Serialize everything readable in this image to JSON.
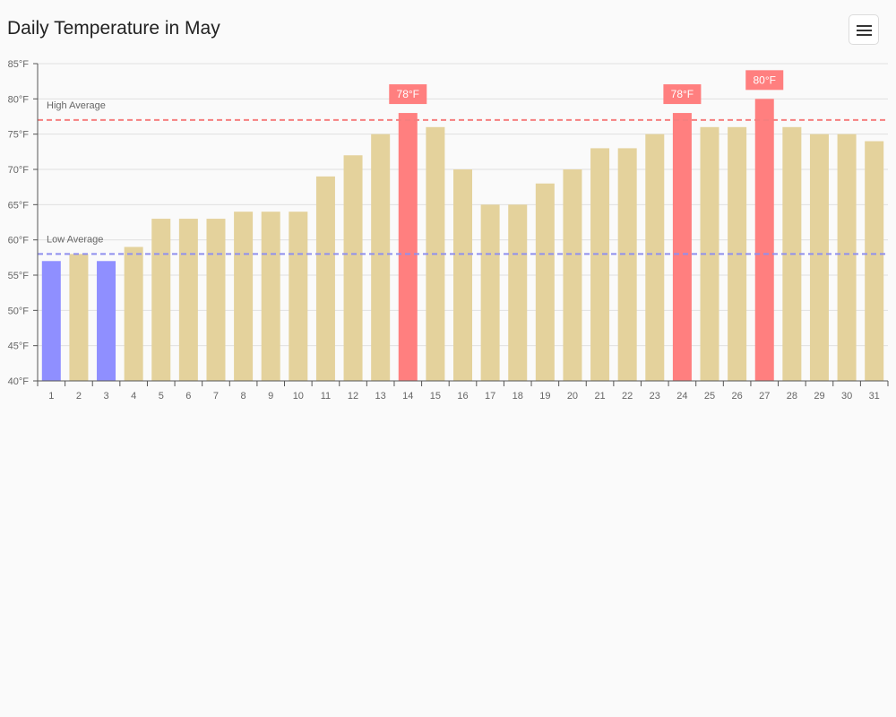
{
  "header": {
    "title": "Daily Temperature in May",
    "menu_icon": "hamburger-menu-icon"
  },
  "chart_data": {
    "type": "bar",
    "title": "Daily Temperature in May",
    "categories": [
      "1",
      "2",
      "3",
      "4",
      "5",
      "6",
      "7",
      "8",
      "9",
      "10",
      "11",
      "12",
      "13",
      "14",
      "15",
      "16",
      "17",
      "18",
      "19",
      "20",
      "21",
      "22",
      "23",
      "24",
      "25",
      "26",
      "27",
      "28",
      "29",
      "30",
      "31"
    ],
    "values": [
      57,
      58,
      57,
      59,
      63,
      63,
      63,
      64,
      64,
      64,
      69,
      72,
      75,
      78,
      76,
      70,
      65,
      65,
      68,
      70,
      73,
      73,
      75,
      78,
      76,
      76,
      80,
      76,
      75,
      75,
      74
    ],
    "ylim": [
      40,
      85
    ],
    "yticks": [
      40,
      45,
      50,
      55,
      60,
      65,
      70,
      75,
      80,
      85
    ],
    "ytick_suffix": "°F",
    "grid": true,
    "reference_lines": [
      {
        "label": "High Average",
        "value": 77,
        "color": "#f57f7f"
      },
      {
        "label": "Low Average",
        "value": 58,
        "color": "#8f8fee"
      }
    ],
    "data_labels": [
      {
        "index": 13,
        "text": "78°F"
      },
      {
        "index": 23,
        "text": "78°F"
      },
      {
        "index": 26,
        "text": "80°F"
      }
    ],
    "colors": {
      "normal": "#e4d29c",
      "above_high": "#ff7f7f",
      "below_low": "#8f8fff",
      "axis": "#555555",
      "grid": "#e0e0e0"
    }
  }
}
